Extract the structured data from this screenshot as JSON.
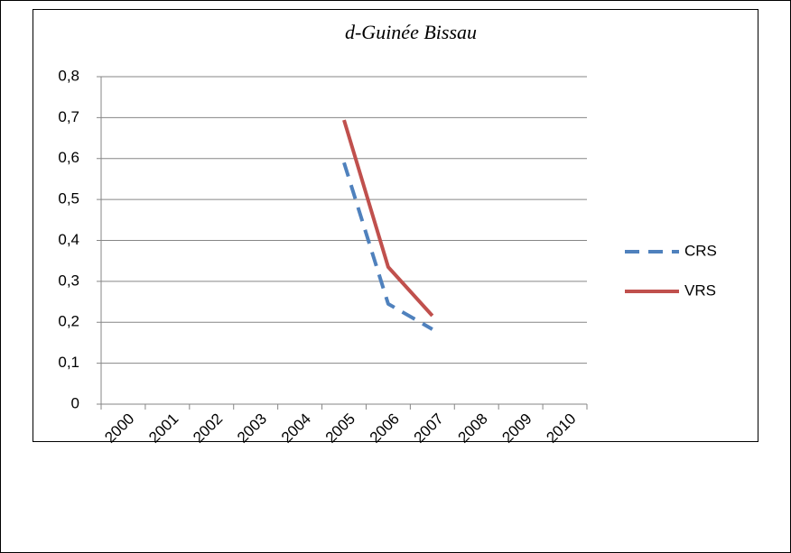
{
  "chart_data": {
    "type": "line",
    "title": "d-Guinée Bissau",
    "categories": [
      "2000",
      "2001",
      "2002",
      "2003",
      "2004",
      "2005",
      "2006",
      "2007",
      "2008",
      "2009",
      "2010"
    ],
    "series": [
      {
        "name": "CRS",
        "color": "#4f81bd",
        "dash": true,
        "values": [
          null,
          null,
          null,
          null,
          null,
          0.59,
          0.245,
          0.183,
          null,
          null,
          null
        ]
      },
      {
        "name": "VRS",
        "color": "#c0504d",
        "dash": false,
        "values": [
          null,
          null,
          null,
          null,
          null,
          0.694,
          0.335,
          0.216,
          null,
          null,
          null
        ]
      }
    ],
    "ylim": [
      0,
      0.8
    ],
    "yticks": [
      0,
      {
        "value": 0.1,
        "label": "0,1"
      },
      {
        "value": 0.2,
        "label": "0,2"
      },
      {
        "value": 0.3,
        "label": "0,3"
      },
      {
        "value": 0.4,
        "label": "0,4"
      },
      {
        "value": 0.5,
        "label": "0,5"
      },
      {
        "value": 0.6,
        "label": "0,6"
      },
      {
        "value": 0.7,
        "label": "0,7"
      },
      {
        "value": 0.8,
        "label": "0,8"
      }
    ],
    "grid": true,
    "legend": "right"
  }
}
